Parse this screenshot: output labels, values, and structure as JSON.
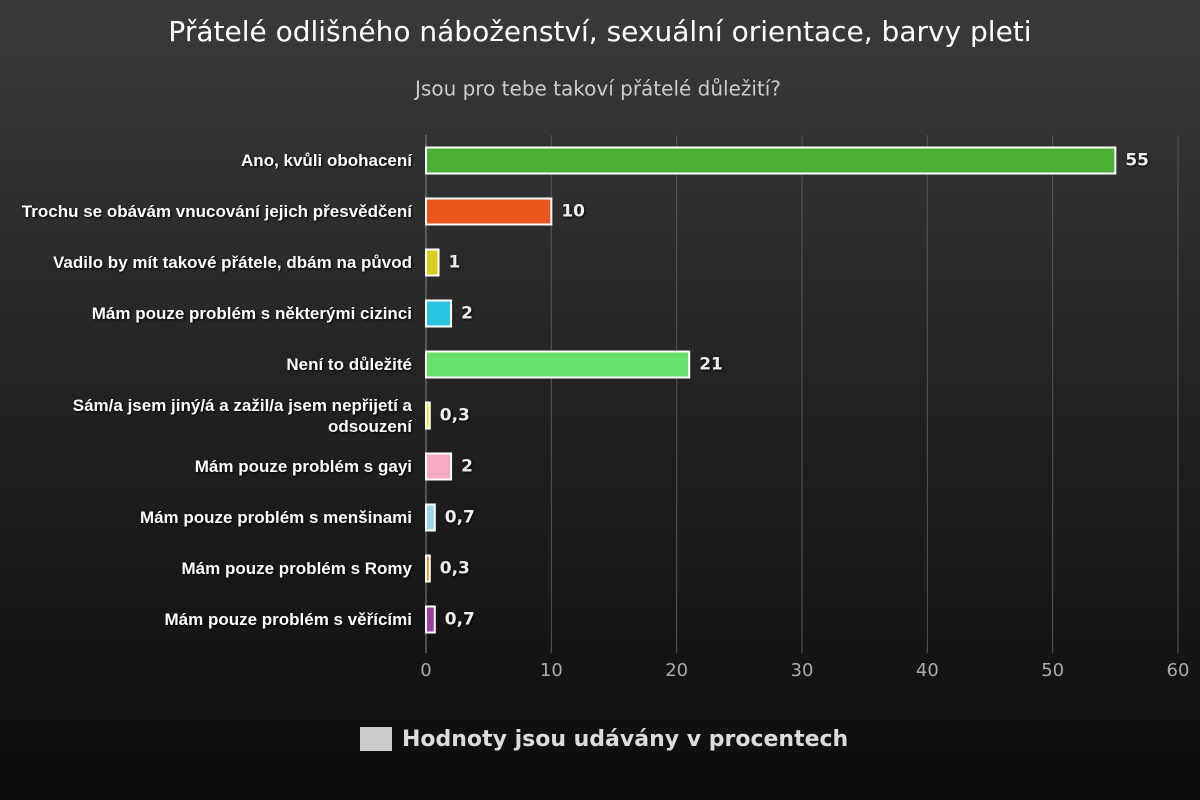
{
  "chart_data": {
    "type": "bar",
    "orientation": "horizontal",
    "title": "Přátelé odlišného náboženství, sexuální orientace, barvy pleti",
    "subtitle": "Jsou pro tebe takoví přátelé důležití?",
    "categories": [
      "Ano, kvůli obohacení",
      "Trochu se obávám vnucování jejich přesvědčení",
      "Vadilo by mít takové přátele, dbám na původ",
      "Mám pouze problém s některými cizinci",
      "Není to důležité",
      "Sám/a jsem jiný/á a zažil/a jsem nepřijetí a odsouzení",
      "Mám pouze problém s gayi",
      "Mám pouze problém s menšinami",
      "Mám pouze problém s Romy",
      "Mám pouze problém s věřícími"
    ],
    "series": [
      {
        "name": "Hodnoty jsou udávány v procentech",
        "color": "#cccccc",
        "values": [
          55,
          10,
          1,
          2,
          21,
          0.3,
          2,
          0.7,
          0.3,
          0.7
        ],
        "value_labels": [
          "55",
          "10",
          "1",
          "2",
          "21",
          "0,3",
          "2",
          "0,7",
          "0,3",
          "0,7"
        ],
        "colors": [
          "#4cb034",
          "#e8561e",
          "#d6cf1f",
          "#29c4e0",
          "#66e06a",
          "#f2e81a",
          "#f7a8c4",
          "#9ad6ea",
          "#f08a1a",
          "#9b3fa3"
        ]
      }
    ],
    "xlim": [
      0,
      60
    ],
    "xticks": [
      0,
      10,
      20,
      30,
      40,
      50,
      60
    ],
    "grid": true
  }
}
